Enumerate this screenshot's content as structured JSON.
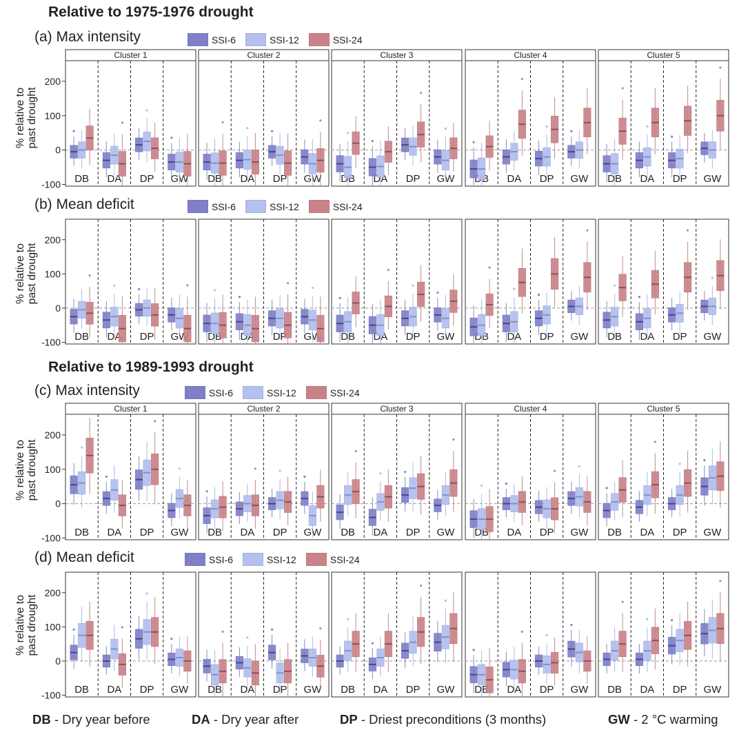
{
  "sections": [
    {
      "title": "Relative to 1975-1976 drought"
    },
    {
      "title": "Relative to 1989-1993 drought"
    }
  ],
  "rows": [
    {
      "title": "(a) Max intensity"
    },
    {
      "title": "(b) Mean deficit"
    },
    {
      "title": "(c) Max  intensity"
    },
    {
      "title": "(d) Mean deficit"
    }
  ],
  "legend": [
    {
      "label": "SSI-6",
      "color": "#8080c8"
    },
    {
      "label": "SSI-12",
      "color": "#b4c0ee"
    },
    {
      "label": "SSI-24",
      "color": "#c98388"
    }
  ],
  "ylabel_line1": "% relative to",
  "ylabel_line2": "past drought",
  "footer": [
    {
      "key": "DB",
      "text": " - Dry year before"
    },
    {
      "key": "DA",
      "text": " - Dry year after"
    },
    {
      "key": "DP",
      "text": " - Driest preconditions (3 months)"
    },
    {
      "key": "GW",
      "text": " - 2 °C warming"
    }
  ],
  "chart_data": {
    "type": "boxplot",
    "ylim": [
      -105,
      260
    ],
    "yticks": [
      -100,
      0,
      100,
      200
    ],
    "clusters": [
      "Cluster 1",
      "Cluster 2",
      "Cluster 3",
      "Cluster 4",
      "Cluster 5"
    ],
    "categories": [
      "DB",
      "DA",
      "DP",
      "GW"
    ],
    "series": [
      "SSI-6",
      "SSI-12",
      "SSI-24"
    ],
    "note": "medians per [row][cluster][category][series] (% relative to past drought), estimated from the figure",
    "medians": [
      [
        [
          [
            -5,
            0,
            35
          ],
          [
            -30,
            -15,
            -40
          ],
          [
            15,
            25,
            5
          ],
          [
            -35,
            -35,
            -40
          ]
        ],
        [
          [
            -35,
            -38,
            -38
          ],
          [
            -30,
            -28,
            -35
          ],
          [
            -5,
            -15,
            -38
          ],
          [
            -20,
            -40,
            -30
          ]
        ],
        [
          [
            -40,
            -50,
            20
          ],
          [
            -50,
            -48,
            -5
          ],
          [
            15,
            10,
            45
          ],
          [
            -20,
            -30,
            5
          ]
        ],
        [
          [
            -55,
            -55,
            10
          ],
          [
            -20,
            -5,
            75
          ],
          [
            -25,
            -20,
            60
          ],
          [
            -5,
            0,
            80
          ]
        ],
        [
          [
            -40,
            -40,
            55
          ],
          [
            -30,
            -20,
            80
          ],
          [
            -30,
            -25,
            85
          ],
          [
            5,
            0,
            100
          ]
        ]
      ],
      [
        [
          [
            -25,
            -5,
            -15
          ],
          [
            -35,
            -25,
            -60
          ],
          [
            -5,
            0,
            -20
          ],
          [
            -20,
            -30,
            -60
          ]
        ],
        [
          [
            -45,
            -45,
            -50
          ],
          [
            -40,
            -50,
            -60
          ],
          [
            -30,
            -30,
            -50
          ],
          [
            -25,
            -35,
            -60
          ]
        ],
        [
          [
            -45,
            -40,
            15
          ],
          [
            -50,
            -50,
            5
          ],
          [
            -30,
            -25,
            40
          ],
          [
            -20,
            -30,
            20
          ]
        ],
        [
          [
            -55,
            -50,
            10
          ],
          [
            -45,
            -40,
            75
          ],
          [
            -30,
            -20,
            100
          ],
          [
            5,
            5,
            90
          ]
        ],
        [
          [
            -35,
            -25,
            60
          ],
          [
            -40,
            -30,
            70
          ],
          [
            -20,
            -15,
            90
          ],
          [
            5,
            5,
            95
          ]
        ]
      ],
      [
        [
          [
            55,
            60,
            140
          ],
          [
            15,
            40,
            -5
          ],
          [
            70,
            90,
            100
          ],
          [
            -20,
            15,
            -5
          ]
        ],
        [
          [
            -35,
            -15,
            -10
          ],
          [
            -15,
            0,
            -5
          ],
          [
            0,
            10,
            5
          ],
          [
            15,
            -35,
            20
          ]
        ],
        [
          [
            -25,
            25,
            35
          ],
          [
            -40,
            5,
            20
          ],
          [
            25,
            45,
            50
          ],
          [
            -5,
            25,
            60
          ]
        ],
        [
          [
            -45,
            -45,
            -45
          ],
          [
            0,
            0,
            5
          ],
          [
            -10,
            -15,
            -15
          ],
          [
            15,
            20,
            5
          ]
        ],
        [
          [
            -20,
            5,
            40
          ],
          [
            -10,
            25,
            55
          ],
          [
            0,
            25,
            60
          ],
          [
            50,
            75,
            80
          ]
        ]
      ],
      [
        [
          [
            25,
            75,
            75
          ],
          [
            0,
            35,
            -10
          ],
          [
            65,
            85,
            85
          ],
          [
            5,
            10,
            0
          ]
        ],
        [
          [
            -15,
            -40,
            -30
          ],
          [
            -5,
            -20,
            -35
          ],
          [
            25,
            -35,
            -30
          ],
          [
            15,
            10,
            -15
          ]
        ],
        [
          [
            0,
            30,
            50
          ],
          [
            -10,
            10,
            50
          ],
          [
            30,
            55,
            85
          ],
          [
            55,
            70,
            95
          ]
        ],
        [
          [
            -40,
            -40,
            -55
          ],
          [
            -25,
            -25,
            -30
          ],
          [
            0,
            -10,
            -5
          ],
          [
            35,
            25,
            0
          ]
        ],
        [
          [
            5,
            30,
            50
          ],
          [
            5,
            30,
            60
          ],
          [
            45,
            60,
            75
          ],
          [
            80,
            90,
            95
          ]
        ]
      ]
    ]
  }
}
